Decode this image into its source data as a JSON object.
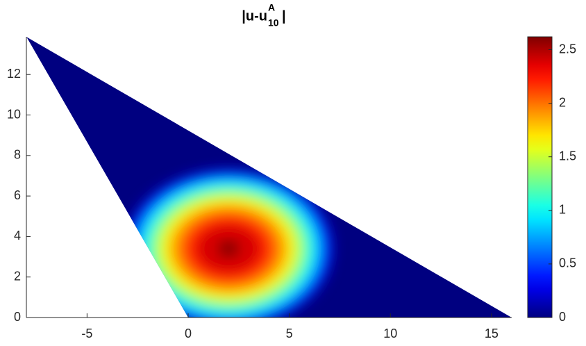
{
  "chart_data": {
    "type": "heatmap",
    "title": {
      "base": "|u-u",
      "superscript": "A",
      "subscript": "10",
      "end": "|"
    },
    "domain": {
      "x": [
        0,
        16,
        -8
      ],
      "y": [
        0,
        0,
        13.86
      ]
    },
    "peak": [
      2,
      3.4
    ],
    "levels": [
      0.2,
      0.4,
      0.6,
      0.8,
      1,
      1.2,
      1.4,
      1.6,
      1.8,
      2,
      2.2,
      2.4,
      2.6
    ],
    "colormap": "jet",
    "clim": [
      0,
      2.62
    ],
    "cticks": [
      0,
      0.5,
      1,
      1.5,
      2,
      2.5
    ],
    "xlim": [
      -8,
      16
    ],
    "ylim": [
      0,
      13.86
    ],
    "xticks": [
      -5,
      0,
      5,
      10,
      15
    ],
    "yticks": [
      0,
      2,
      4,
      6,
      8,
      10,
      12
    ]
  }
}
